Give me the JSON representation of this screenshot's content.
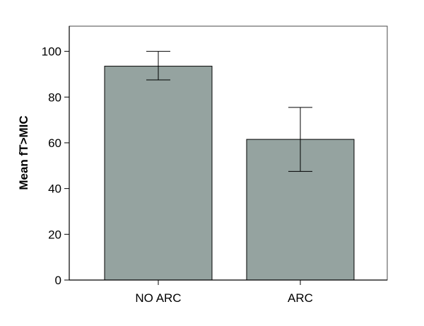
{
  "chart_data": {
    "type": "bar",
    "title": "",
    "xlabel": "",
    "ylabel": "Mean fT>MIC",
    "categories": [
      "NO ARC",
      "ARC"
    ],
    "values": [
      93.5,
      61.5
    ],
    "error_bars": [
      {
        "lower": 87.5,
        "upper": 100
      },
      {
        "lower": 47.5,
        "upper": 75.5
      }
    ],
    "ylim": [
      0,
      111
    ],
    "yticks": [
      0,
      20,
      40,
      60,
      80,
      100
    ],
    "grid": false,
    "legend": "none",
    "colors": {
      "bar_fill": "#95a3a0",
      "bar_stroke": "#000000",
      "axis": "#000000",
      "frame": "#4a4a4a"
    }
  }
}
